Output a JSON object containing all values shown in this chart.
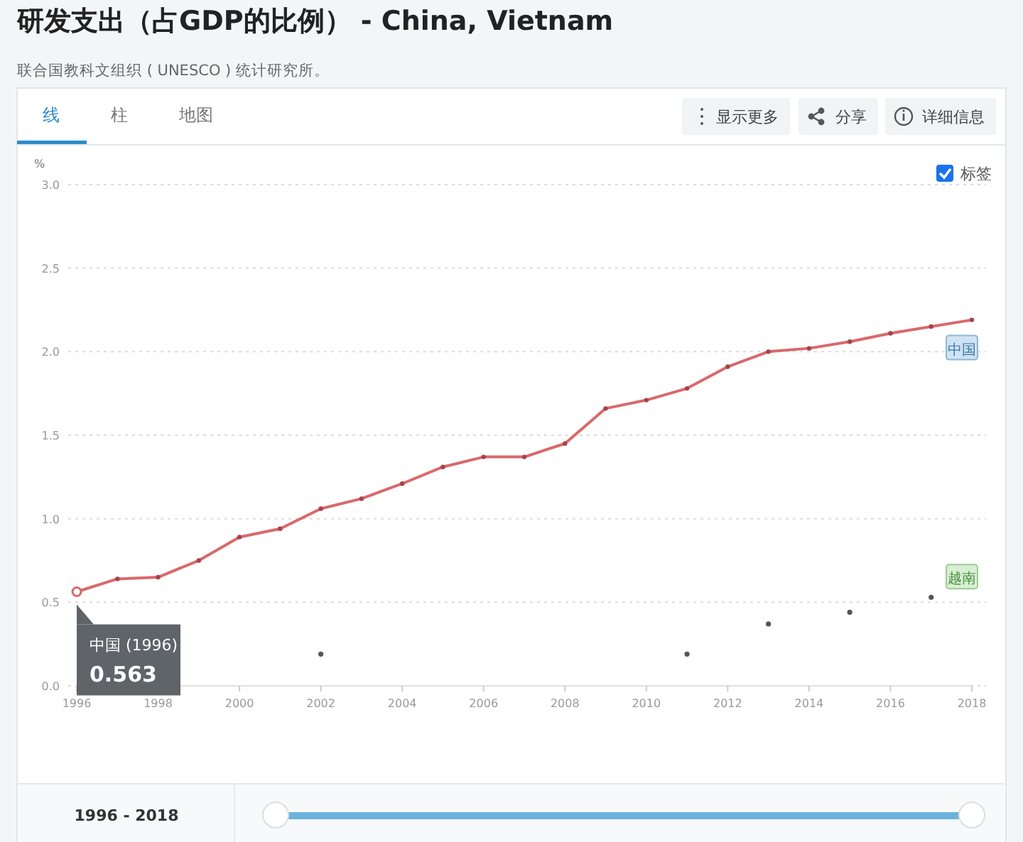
{
  "chart_data": {
    "type": "line",
    "title": "研发支出（占GDP的比例） - China, Vietnam",
    "subtitle": "联合国教科文组织 ( UNESCO ) 统计研究所。",
    "ylabel": "%",
    "x": [
      1996,
      1997,
      1998,
      1999,
      2000,
      2001,
      2002,
      2003,
      2004,
      2005,
      2006,
      2007,
      2008,
      2009,
      2010,
      2011,
      2012,
      2013,
      2014,
      2015,
      2016,
      2017,
      2018
    ],
    "series": [
      {
        "name": "中国",
        "color": "#d9696b",
        "values": [
          0.563,
          0.64,
          0.65,
          0.75,
          0.89,
          0.94,
          1.06,
          1.12,
          1.21,
          1.31,
          1.37,
          1.37,
          1.45,
          1.66,
          1.71,
          1.78,
          1.91,
          2.0,
          2.02,
          2.06,
          2.11,
          2.15,
          2.19
        ]
      },
      {
        "name": "越南",
        "type": "scatter",
        "color": "#555555",
        "x": [
          2002,
          2011,
          2013,
          2015,
          2017
        ],
        "values": [
          0.19,
          0.19,
          0.37,
          0.44,
          0.53
        ]
      }
    ],
    "xlim": [
      1996,
      2018
    ],
    "xticks": [
      1996,
      1998,
      2000,
      2002,
      2004,
      2006,
      2008,
      2010,
      2012,
      2014,
      2016,
      2018
    ],
    "ylim": [
      0,
      3
    ],
    "yticks": [
      {
        "value": 0,
        "label": "0.0"
      },
      {
        "value": 0.5,
        "label": "0.5"
      },
      {
        "value": 1,
        "label": "1.0"
      },
      {
        "value": 1.5,
        "label": "1.5"
      },
      {
        "value": 2,
        "label": "2.0"
      },
      {
        "value": 2.5,
        "label": "2.5"
      },
      {
        "value": 3,
        "label": "3.0"
      }
    ],
    "grid": "y",
    "marker": "circle",
    "line_style": "solid",
    "annotations": [
      {
        "text": "中国 (1996)\n0.563",
        "x": 1996,
        "y": 0.563
      },
      "线",
      "柱",
      "地图",
      "显示更多",
      "分享",
      "详细信息",
      "标签",
      "1996 - 2018"
    ]
  }
}
